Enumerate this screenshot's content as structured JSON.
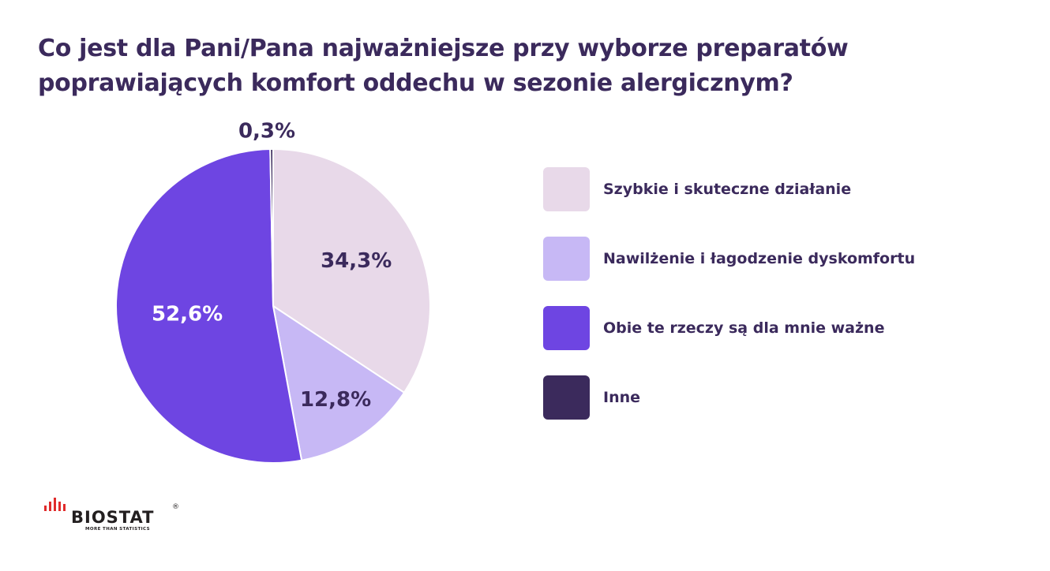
{
  "chart_data": {
    "type": "pie",
    "title": "Co jest dla Pani/Pana najważniejsze przy wyborze preparatów poprawiających komfort oddechu w sezonie alergicznym?",
    "slices": [
      {
        "label": "Szybkie i skuteczne działanie",
        "value": 34.3,
        "value_label": "34,3%",
        "color": "#e8d9e9",
        "label_color": "#3b2a5c"
      },
      {
        "label": "Nawilżenie i łagodzenie dyskomfortu",
        "value": 12.8,
        "value_label": "12,8%",
        "color": "#c7b8f5",
        "label_color": "#3b2a5c"
      },
      {
        "label": "Obie te rzeczy są dla mnie ważne",
        "value": 52.6,
        "value_label": "52,6%",
        "color": "#6e45e2",
        "label_color": "#ffffff"
      },
      {
        "label": "Inne",
        "value": 0.3,
        "value_label": "0,3%",
        "color": "#3b2a5c",
        "label_color": "#3b2a5c"
      }
    ],
    "legend_position": "right"
  },
  "brand": {
    "name": "BIOSTAT",
    "tagline": "MORE THAN STATISTICS",
    "reg_mark": "®"
  }
}
